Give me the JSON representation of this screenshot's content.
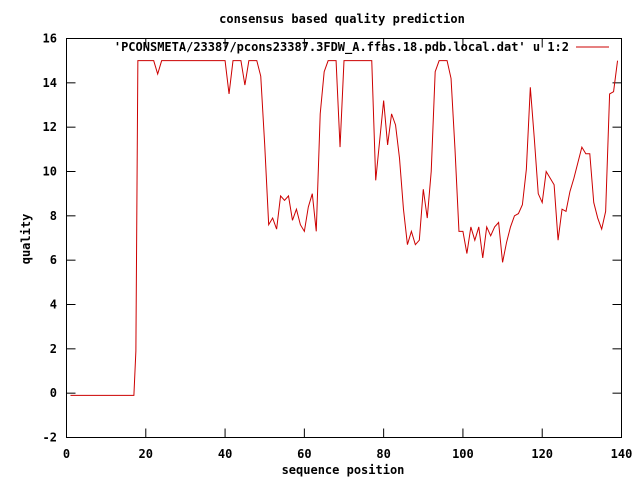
{
  "chart_data": {
    "type": "line",
    "title": "consensus based quality prediction",
    "xlabel": "sequence position",
    "ylabel": "quality",
    "xlim": [
      0,
      140
    ],
    "ylim": [
      -2,
      16
    ],
    "xticks": [
      0,
      20,
      40,
      60,
      80,
      100,
      120,
      140
    ],
    "yticks": [
      -2,
      0,
      2,
      4,
      6,
      8,
      10,
      12,
      14,
      16
    ],
    "legend_position": "top-right",
    "grid": false,
    "series": [
      {
        "name": "'PCONSMETA/23387/pcons23387.3FDW_A.ffas.18.pdb.local.dat' u 1:2",
        "color": "#cc0000",
        "x": [
          1,
          2,
          3,
          4,
          5,
          6,
          7,
          8,
          9,
          10,
          11,
          12,
          13,
          14,
          15,
          16,
          17,
          17.5,
          18,
          19,
          20,
          21,
          22,
          23,
          24,
          25,
          26,
          27,
          28,
          29,
          30,
          31,
          32,
          33,
          34,
          35,
          36,
          37,
          38,
          39,
          40,
          41,
          42,
          43,
          44,
          45,
          46,
          47,
          48,
          49,
          50,
          51,
          52,
          53,
          54,
          55,
          56,
          57,
          58,
          59,
          60,
          61,
          62,
          63,
          64,
          65,
          66,
          67,
          68,
          69,
          70,
          71,
          72,
          73,
          74,
          75,
          76,
          77,
          78,
          79,
          80,
          81,
          82,
          83,
          84,
          85,
          86,
          87,
          88,
          89,
          90,
          91,
          92,
          93,
          94,
          95,
          96,
          97,
          98,
          99,
          100,
          101,
          102,
          103,
          104,
          105,
          106,
          107,
          108,
          109,
          110,
          111,
          112,
          113,
          114,
          115,
          116,
          117,
          118,
          119,
          120,
          121,
          122,
          123,
          124,
          125,
          126,
          127,
          128,
          129,
          130,
          131,
          132,
          133,
          134,
          135,
          136,
          137,
          138,
          139
        ],
        "y": [
          -0.1,
          -0.1,
          -0.1,
          -0.1,
          -0.1,
          -0.1,
          -0.1,
          -0.1,
          -0.1,
          -0.1,
          -0.1,
          -0.1,
          -0.1,
          -0.1,
          -0.1,
          -0.1,
          -0.1,
          1.9,
          15,
          15,
          15,
          15,
          15,
          14.4,
          15,
          15,
          15,
          15,
          15,
          15,
          15,
          15,
          15,
          15,
          15,
          15,
          15,
          15,
          15,
          15,
          15,
          13.5,
          15,
          15,
          15,
          13.9,
          15,
          15,
          15,
          14.3,
          11.2,
          7.6,
          7.9,
          7.4,
          8.9,
          8.7,
          8.9,
          7.8,
          8.3,
          7.6,
          7.3,
          8.4,
          9,
          7.3,
          12.6,
          14.5,
          15,
          15,
          15,
          11.1,
          15,
          15,
          15,
          15,
          15,
          15,
          15,
          15,
          9.6,
          11.4,
          13.2,
          11.2,
          12.6,
          12.1,
          10.6,
          8.3,
          6.7,
          7.3,
          6.7,
          6.9,
          9.2,
          7.9,
          10,
          14.5,
          15,
          15,
          15,
          14.2,
          11,
          7.3,
          7.3,
          6.3,
          7.5,
          6.9,
          7.5,
          6.1,
          7.5,
          7.1,
          7.5,
          7.7,
          5.9,
          6.8,
          7.5,
          8,
          8.1,
          8.5,
          10.1,
          13.8,
          11.5,
          9,
          8.6,
          10,
          9.7,
          9.4,
          6.9,
          8.3,
          8.2,
          9.1,
          9.7,
          10.4,
          11.1,
          10.8,
          10.8,
          8.6,
          7.9,
          7.4,
          8.2,
          13.5,
          13.6,
          15
        ]
      }
    ]
  }
}
